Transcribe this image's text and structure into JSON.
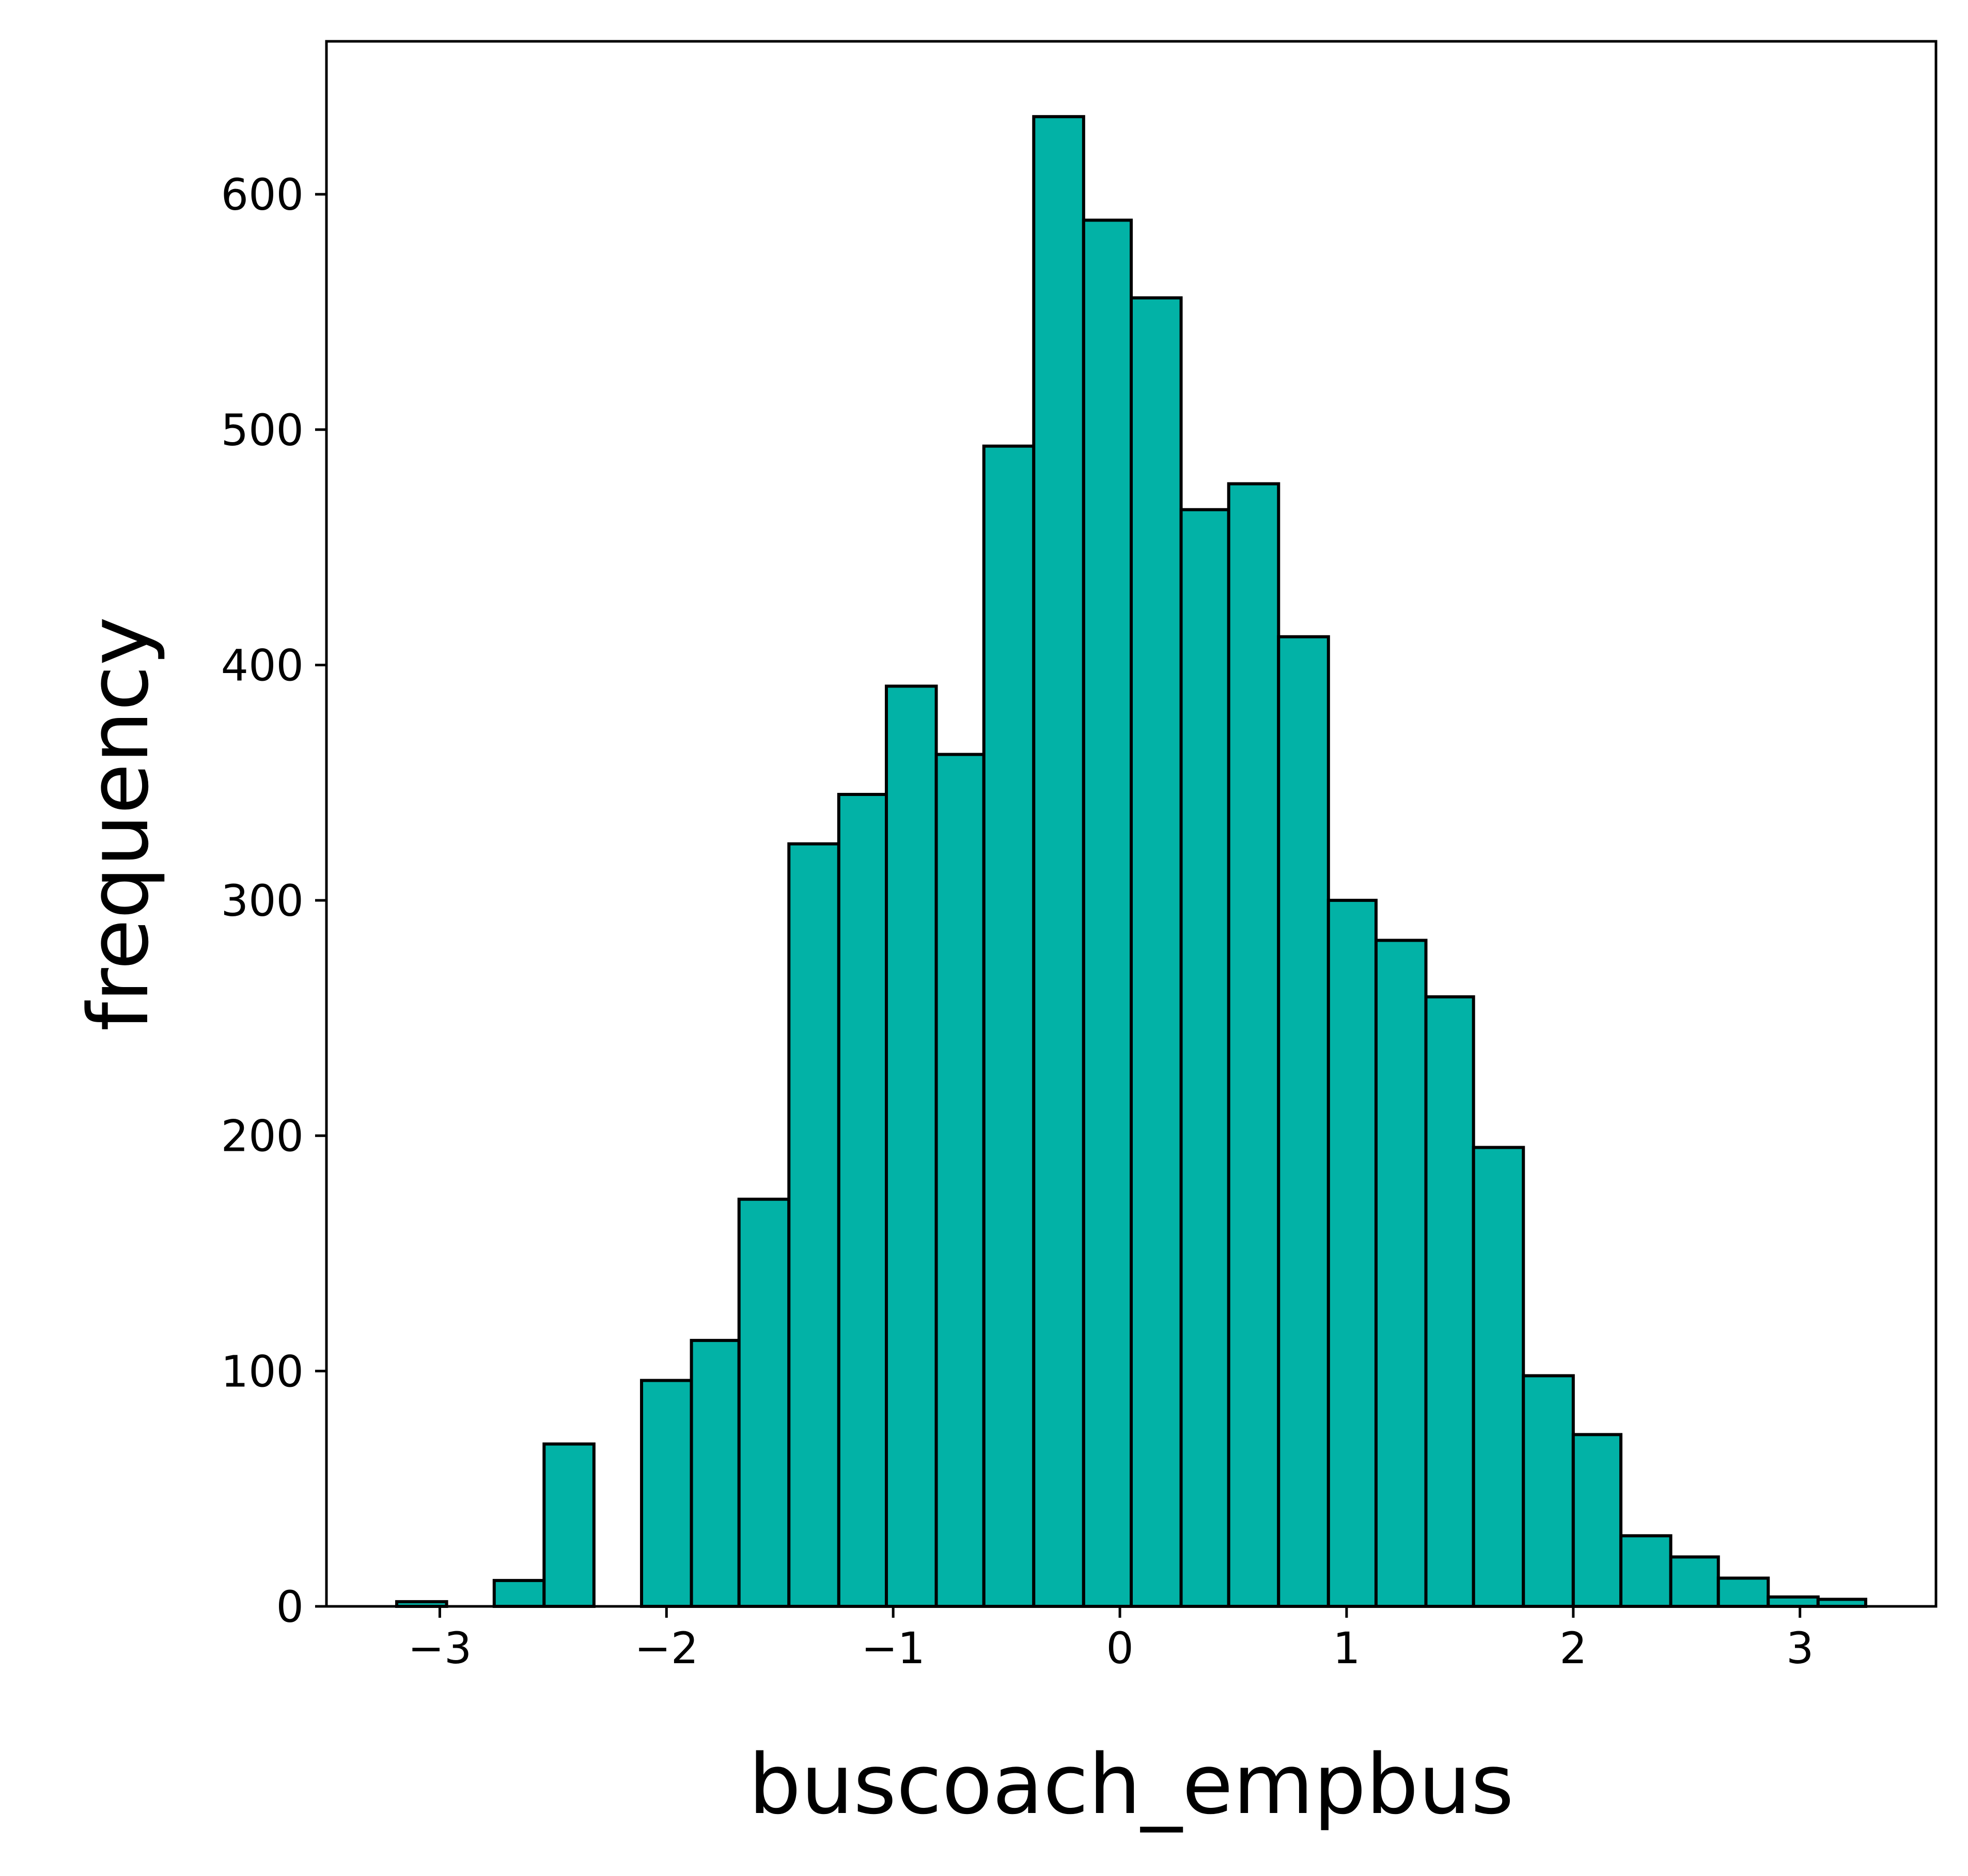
{
  "chart_data": {
    "type": "bar",
    "subtype": "histogram",
    "title": "",
    "xlabel": "buscoach_empbus",
    "ylabel": "frequency",
    "bar_color": "#02b2a6",
    "edge_color": "#000000",
    "xlim": [
      -3.5,
      3.6
    ],
    "ylim": [
      0,
      665
    ],
    "xticks": [
      -3,
      -2,
      -1,
      0,
      1,
      2,
      3
    ],
    "xtick_labels": [
      "−3",
      "−2",
      "−1",
      "0",
      "1",
      "2",
      "3"
    ],
    "yticks": [
      0,
      100,
      200,
      300,
      400,
      500,
      600
    ],
    "ytick_labels": [
      "0",
      "100",
      "200",
      "300",
      "400",
      "500",
      "600"
    ],
    "grid": false,
    "legend": false,
    "bins": [
      {
        "x0": -3.19,
        "x1": -2.97,
        "value": 2
      },
      {
        "x0": -2.97,
        "x1": -2.76,
        "value": 0
      },
      {
        "x0": -2.76,
        "x1": -2.54,
        "value": 11
      },
      {
        "x0": -2.54,
        "x1": -2.32,
        "value": 69
      },
      {
        "x0": -2.32,
        "x1": -2.11,
        "value": 0
      },
      {
        "x0": -2.11,
        "x1": -1.89,
        "value": 96
      },
      {
        "x0": -1.89,
        "x1": -1.68,
        "value": 113
      },
      {
        "x0": -1.68,
        "x1": -1.46,
        "value": 173
      },
      {
        "x0": -1.46,
        "x1": -1.24,
        "value": 324
      },
      {
        "x0": -1.24,
        "x1": -1.03,
        "value": 345
      },
      {
        "x0": -1.03,
        "x1": -0.81,
        "value": 391
      },
      {
        "x0": -0.81,
        "x1": -0.6,
        "value": 362
      },
      {
        "x0": -0.6,
        "x1": -0.38,
        "value": 493
      },
      {
        "x0": -0.38,
        "x1": -0.16,
        "value": 633
      },
      {
        "x0": -0.16,
        "x1": 0.05,
        "value": 589
      },
      {
        "x0": 0.05,
        "x1": 0.27,
        "value": 556
      },
      {
        "x0": 0.27,
        "x1": 0.48,
        "value": 466
      },
      {
        "x0": 0.48,
        "x1": 0.7,
        "value": 477
      },
      {
        "x0": 0.7,
        "x1": 0.92,
        "value": 412
      },
      {
        "x0": 0.92,
        "x1": 1.13,
        "value": 300
      },
      {
        "x0": 1.13,
        "x1": 1.35,
        "value": 283
      },
      {
        "x0": 1.35,
        "x1": 1.56,
        "value": 259
      },
      {
        "x0": 1.56,
        "x1": 1.78,
        "value": 195
      },
      {
        "x0": 1.78,
        "x1": 2.0,
        "value": 98
      },
      {
        "x0": 2.0,
        "x1": 2.21,
        "value": 73
      },
      {
        "x0": 2.21,
        "x1": 2.43,
        "value": 30
      },
      {
        "x0": 2.43,
        "x1": 2.64,
        "value": 21
      },
      {
        "x0": 2.64,
        "x1": 2.86,
        "value": 12
      },
      {
        "x0": 2.86,
        "x1": 3.08,
        "value": 4
      },
      {
        "x0": 3.08,
        "x1": 3.29,
        "value": 3
      }
    ]
  }
}
